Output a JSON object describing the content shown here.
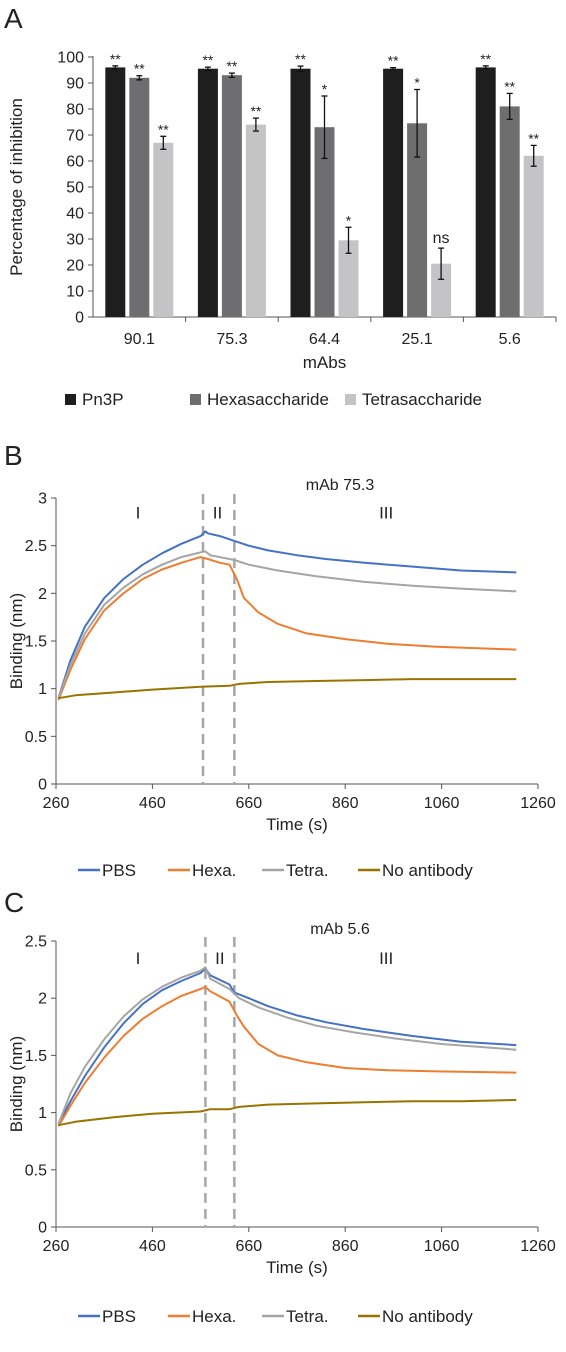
{
  "panels": {
    "a": {
      "letter": "A"
    },
    "b": {
      "letter": "B"
    },
    "c": {
      "letter": "C"
    }
  },
  "chart_data": [
    {
      "type": "bar",
      "panel": "A",
      "categories": [
        "90.1",
        "75.3",
        "64.4",
        "25.1",
        "5.6"
      ],
      "xlabel": "mAbs",
      "ylabel": "Percentage of inhibition",
      "ylim": [
        0,
        100
      ],
      "yticks": [
        0,
        10,
        20,
        30,
        40,
        50,
        60,
        70,
        80,
        90,
        100
      ],
      "grid": false,
      "legend_position": "bottom",
      "series": [
        {
          "name": "Pn3P",
          "color": "#1e1e1e",
          "values": [
            96,
            95.5,
            95.5,
            95.5,
            96
          ],
          "errors": [
            0.6,
            0.6,
            1,
            0.4,
            0.6
          ],
          "labels": [
            "**",
            "**",
            "**",
            "**",
            "**"
          ]
        },
        {
          "name": "Hexasaccharide",
          "color": "#6e6e70",
          "values": [
            92,
            93,
            73,
            74.5,
            81
          ],
          "errors": [
            0.8,
            0.8,
            12,
            13,
            5
          ],
          "labels": [
            "**",
            "**",
            "*",
            "*",
            "**"
          ]
        },
        {
          "name": "Tetrasaccharide",
          "color": "#c4c4c6",
          "values": [
            67,
            74,
            29.5,
            20.5,
            62
          ],
          "errors": [
            2.5,
            2.5,
            5,
            6,
            4
          ],
          "labels": [
            "**",
            "**",
            "*",
            "ns",
            "**"
          ]
        }
      ]
    },
    {
      "type": "line",
      "panel": "B",
      "title": "mAb 75.3",
      "xlabel": "Time (s)",
      "ylabel": "Binding (nm)",
      "xlim": [
        260,
        1260
      ],
      "xticks": [
        260,
        460,
        660,
        860,
        1060,
        1260
      ],
      "ylim": [
        0,
        3
      ],
      "yticks": [
        0,
        0.5,
        1,
        1.5,
        2,
        2.5,
        3
      ],
      "yticklabels": [
        "0",
        "0.5",
        "1",
        "1.5",
        "2",
        "2.5",
        "3"
      ],
      "grid": false,
      "legend_position": "bottom",
      "phase_lines": [
        565,
        630
      ],
      "phase_labels": [
        {
          "text": "I",
          "x": 430,
          "y": 2.85
        },
        {
          "text": "II",
          "x": 595,
          "y": 2.85
        },
        {
          "text": "III",
          "x": 945,
          "y": 2.85
        }
      ],
      "series": [
        {
          "name": "PBS",
          "color": "#4472c4",
          "points": [
            [
              265,
              0.9
            ],
            [
              290,
              1.3
            ],
            [
              320,
              1.65
            ],
            [
              360,
              1.95
            ],
            [
              400,
              2.15
            ],
            [
              440,
              2.3
            ],
            [
              480,
              2.42
            ],
            [
              520,
              2.52
            ],
            [
              560,
              2.6
            ],
            [
              570,
              2.65
            ],
            [
              575,
              2.63
            ],
            [
              600,
              2.6
            ],
            [
              630,
              2.55
            ],
            [
              660,
              2.5
            ],
            [
              700,
              2.45
            ],
            [
              760,
              2.4
            ],
            [
              820,
              2.36
            ],
            [
              900,
              2.32
            ],
            [
              1000,
              2.28
            ],
            [
              1100,
              2.24
            ],
            [
              1215,
              2.22
            ]
          ]
        },
        {
          "name": "Hexa.",
          "color": "#ed7d31",
          "points": [
            [
              265,
              0.88
            ],
            [
              290,
              1.2
            ],
            [
              320,
              1.52
            ],
            [
              360,
              1.82
            ],
            [
              400,
              2.0
            ],
            [
              440,
              2.15
            ],
            [
              480,
              2.25
            ],
            [
              520,
              2.32
            ],
            [
              560,
              2.38
            ],
            [
              575,
              2.36
            ],
            [
              600,
              2.32
            ],
            [
              620,
              2.3
            ],
            [
              635,
              2.15
            ],
            [
              650,
              1.95
            ],
            [
              680,
              1.8
            ],
            [
              720,
              1.68
            ],
            [
              780,
              1.58
            ],
            [
              860,
              1.52
            ],
            [
              950,
              1.47
            ],
            [
              1050,
              1.44
            ],
            [
              1215,
              1.41
            ]
          ]
        },
        {
          "name": "Tetra.",
          "color": "#a5a5a5",
          "points": [
            [
              265,
              0.9
            ],
            [
              290,
              1.25
            ],
            [
              320,
              1.58
            ],
            [
              360,
              1.88
            ],
            [
              400,
              2.06
            ],
            [
              440,
              2.2
            ],
            [
              480,
              2.3
            ],
            [
              520,
              2.38
            ],
            [
              560,
              2.43
            ],
            [
              570,
              2.44
            ],
            [
              580,
              2.4
            ],
            [
              630,
              2.35
            ],
            [
              660,
              2.3
            ],
            [
              720,
              2.24
            ],
            [
              800,
              2.18
            ],
            [
              900,
              2.12
            ],
            [
              1000,
              2.08
            ],
            [
              1100,
              2.05
            ],
            [
              1215,
              2.02
            ]
          ]
        },
        {
          "name": "No antibody",
          "color": "#997300",
          "points": [
            [
              265,
              0.9
            ],
            [
              300,
              0.93
            ],
            [
              380,
              0.96
            ],
            [
              460,
              0.99
            ],
            [
              560,
              1.02
            ],
            [
              620,
              1.03
            ],
            [
              640,
              1.05
            ],
            [
              700,
              1.07
            ],
            [
              800,
              1.08
            ],
            [
              900,
              1.09
            ],
            [
              1000,
              1.1
            ],
            [
              1100,
              1.1
            ],
            [
              1215,
              1.1
            ]
          ]
        }
      ]
    },
    {
      "type": "line",
      "panel": "C",
      "title": "mAb 5.6",
      "xlabel": "Time (s)",
      "ylabel": "Binding (nm)",
      "xlim": [
        260,
        1260
      ],
      "xticks": [
        260,
        460,
        660,
        860,
        1060,
        1260
      ],
      "ylim": [
        0,
        2.5
      ],
      "yticks": [
        0,
        0.5,
        1,
        1.5,
        2,
        2.5
      ],
      "yticklabels": [
        "0",
        "0.5",
        "1",
        "1.5",
        "2",
        "2.5"
      ],
      "grid": false,
      "legend_position": "bottom",
      "phase_lines": [
        570,
        630
      ],
      "phase_labels": [
        {
          "text": "I",
          "x": 430,
          "y": 2.35
        },
        {
          "text": "II",
          "x": 600,
          "y": 2.35
        },
        {
          "text": "III",
          "x": 945,
          "y": 2.35
        }
      ],
      "series": [
        {
          "name": "PBS",
          "color": "#4472c4",
          "points": [
            [
              265,
              0.9
            ],
            [
              290,
              1.1
            ],
            [
              320,
              1.32
            ],
            [
              360,
              1.57
            ],
            [
              400,
              1.78
            ],
            [
              440,
              1.95
            ],
            [
              480,
              2.07
            ],
            [
              520,
              2.15
            ],
            [
              560,
              2.22
            ],
            [
              570,
              2.26
            ],
            [
              580,
              2.2
            ],
            [
              620,
              2.12
            ],
            [
              630,
              2.05
            ],
            [
              660,
              2.0
            ],
            [
              700,
              1.93
            ],
            [
              760,
              1.85
            ],
            [
              820,
              1.79
            ],
            [
              900,
              1.73
            ],
            [
              1000,
              1.67
            ],
            [
              1100,
              1.62
            ],
            [
              1215,
              1.59
            ]
          ]
        },
        {
          "name": "Hexa.",
          "color": "#ed7d31",
          "points": [
            [
              265,
              0.88
            ],
            [
              290,
              1.06
            ],
            [
              320,
              1.26
            ],
            [
              360,
              1.48
            ],
            [
              400,
              1.67
            ],
            [
              440,
              1.82
            ],
            [
              480,
              1.93
            ],
            [
              520,
              2.02
            ],
            [
              560,
              2.08
            ],
            [
              570,
              2.1
            ],
            [
              580,
              2.06
            ],
            [
              620,
              1.97
            ],
            [
              635,
              1.85
            ],
            [
              650,
              1.75
            ],
            [
              680,
              1.6
            ],
            [
              720,
              1.5
            ],
            [
              780,
              1.44
            ],
            [
              860,
              1.39
            ],
            [
              950,
              1.37
            ],
            [
              1050,
              1.36
            ],
            [
              1215,
              1.35
            ]
          ]
        },
        {
          "name": "Tetra.",
          "color": "#a5a5a5",
          "points": [
            [
              265,
              0.9
            ],
            [
              290,
              1.17
            ],
            [
              320,
              1.4
            ],
            [
              360,
              1.64
            ],
            [
              400,
              1.84
            ],
            [
              440,
              1.99
            ],
            [
              480,
              2.1
            ],
            [
              520,
              2.18
            ],
            [
              560,
              2.24
            ],
            [
              570,
              2.27
            ],
            [
              580,
              2.17
            ],
            [
              620,
              2.08
            ],
            [
              640,
              2.0
            ],
            [
              680,
              1.92
            ],
            [
              740,
              1.83
            ],
            [
              800,
              1.76
            ],
            [
              880,
              1.7
            ],
            [
              960,
              1.65
            ],
            [
              1060,
              1.6
            ],
            [
              1215,
              1.55
            ]
          ]
        },
        {
          "name": "No antibody",
          "color": "#997300",
          "points": [
            [
              265,
              0.89
            ],
            [
              300,
              0.92
            ],
            [
              380,
              0.96
            ],
            [
              460,
              0.99
            ],
            [
              560,
              1.01
            ],
            [
              580,
              1.03
            ],
            [
              620,
              1.03
            ],
            [
              640,
              1.05
            ],
            [
              700,
              1.07
            ],
            [
              800,
              1.08
            ],
            [
              900,
              1.09
            ],
            [
              1000,
              1.1
            ],
            [
              1100,
              1.1
            ],
            [
              1215,
              1.11
            ]
          ]
        }
      ]
    }
  ]
}
